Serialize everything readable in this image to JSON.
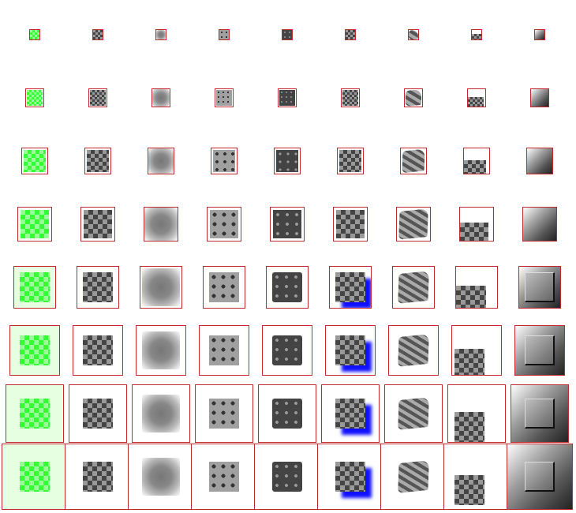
{
  "grid": {
    "rows": 8,
    "columns": 9,
    "column_effects": [
      "green-checker",
      "dark-checker",
      "blur",
      "dotted",
      "dotted-dark",
      "drop-shadow",
      "warp",
      "offset-crop",
      "bevel"
    ],
    "colors": {
      "border": "#c0282d",
      "green": "#33ff33",
      "light_green": "#99ff99",
      "dark": "#444444",
      "light": "#999999",
      "shadow": "#1010ff"
    }
  }
}
